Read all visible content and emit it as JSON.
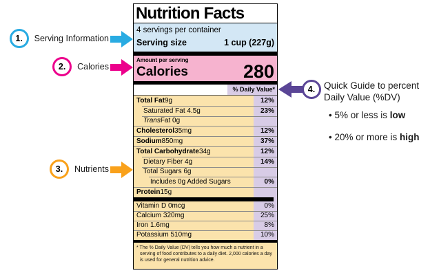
{
  "colors": {
    "cyan": "#29ABE2",
    "magenta": "#EC008C",
    "orange": "#F9A11B",
    "purple": "#5A4596",
    "serving_bg": "#d3e7f5",
    "calories_bg": "#f6b3cf",
    "row_bg": "#fbe3ac",
    "dv_column_bg": "#d8cce6"
  },
  "annotations": {
    "left": [
      {
        "number": "1.",
        "label": "Serving Information"
      },
      {
        "number": "2.",
        "label": "Calories"
      },
      {
        "number": "3.",
        "label": "Nutrients"
      }
    ],
    "right": {
      "number": "4.",
      "label_line1": "Quick Guide to percent",
      "label_line2": "Daily Value (%DV)",
      "bullets": [
        {
          "prefix": "• 5% or less is ",
          "bold": "low"
        },
        {
          "prefix": "• 20% or more is ",
          "bold": "high"
        }
      ]
    }
  },
  "label": {
    "title": "Nutrition Facts",
    "servings_per_container": "4 servings per container",
    "serving_size_label": "Serving size",
    "serving_size_value": "1 cup (227g)",
    "amount_per_serving": "Amount per serving",
    "calories_label": "Calories",
    "calories_value": "280",
    "daily_value_header": "% Daily Value*",
    "nutrients": [
      {
        "bold_part": "Total Fat",
        "normal_part": " 9g",
        "dv": "12%",
        "indent": 0
      },
      {
        "normal_part": "Saturated Fat 4.5g",
        "dv": "23%",
        "indent": 1
      },
      {
        "italic_part": "Trans",
        "normal_part": " Fat 0g",
        "dv": "",
        "indent": 1
      },
      {
        "bold_part": "Cholesterol",
        "normal_part": " 35mg",
        "dv": "12%",
        "indent": 0
      },
      {
        "bold_part": "Sodium",
        "normal_part": " 850mg",
        "dv": "37%",
        "indent": 0
      },
      {
        "bold_part": "Total Carbohydrate",
        "normal_part": " 34g",
        "dv": "12%",
        "indent": 0
      },
      {
        "normal_part": "Dietary Fiber 4g",
        "dv": "14%",
        "indent": 1
      },
      {
        "normal_part": "Total Sugars 6g",
        "dv": "",
        "indent": 1
      },
      {
        "normal_part": "Includes 0g Added Sugars",
        "dv": "0%",
        "indent": 2
      },
      {
        "bold_part": "Protein",
        "normal_part": " 15g",
        "dv": "",
        "indent": 0
      }
    ],
    "vitamins": [
      {
        "normal_part": "Vitamin D 0mcg",
        "dv": "0%",
        "indent": 0
      },
      {
        "normal_part": "Calcium 320mg",
        "dv": "25%",
        "indent": 0
      },
      {
        "normal_part": "Iron 1.6mg",
        "dv": "8%",
        "indent": 0
      },
      {
        "normal_part": "Potassium 510mg",
        "dv": "10%",
        "indent": 0
      }
    ],
    "footnote": "* The % Daily Value (DV) tells you how much a nutrient in a serving of food contributes to a daily diet. 2,000 calories a day is used for general nutrition advice."
  }
}
